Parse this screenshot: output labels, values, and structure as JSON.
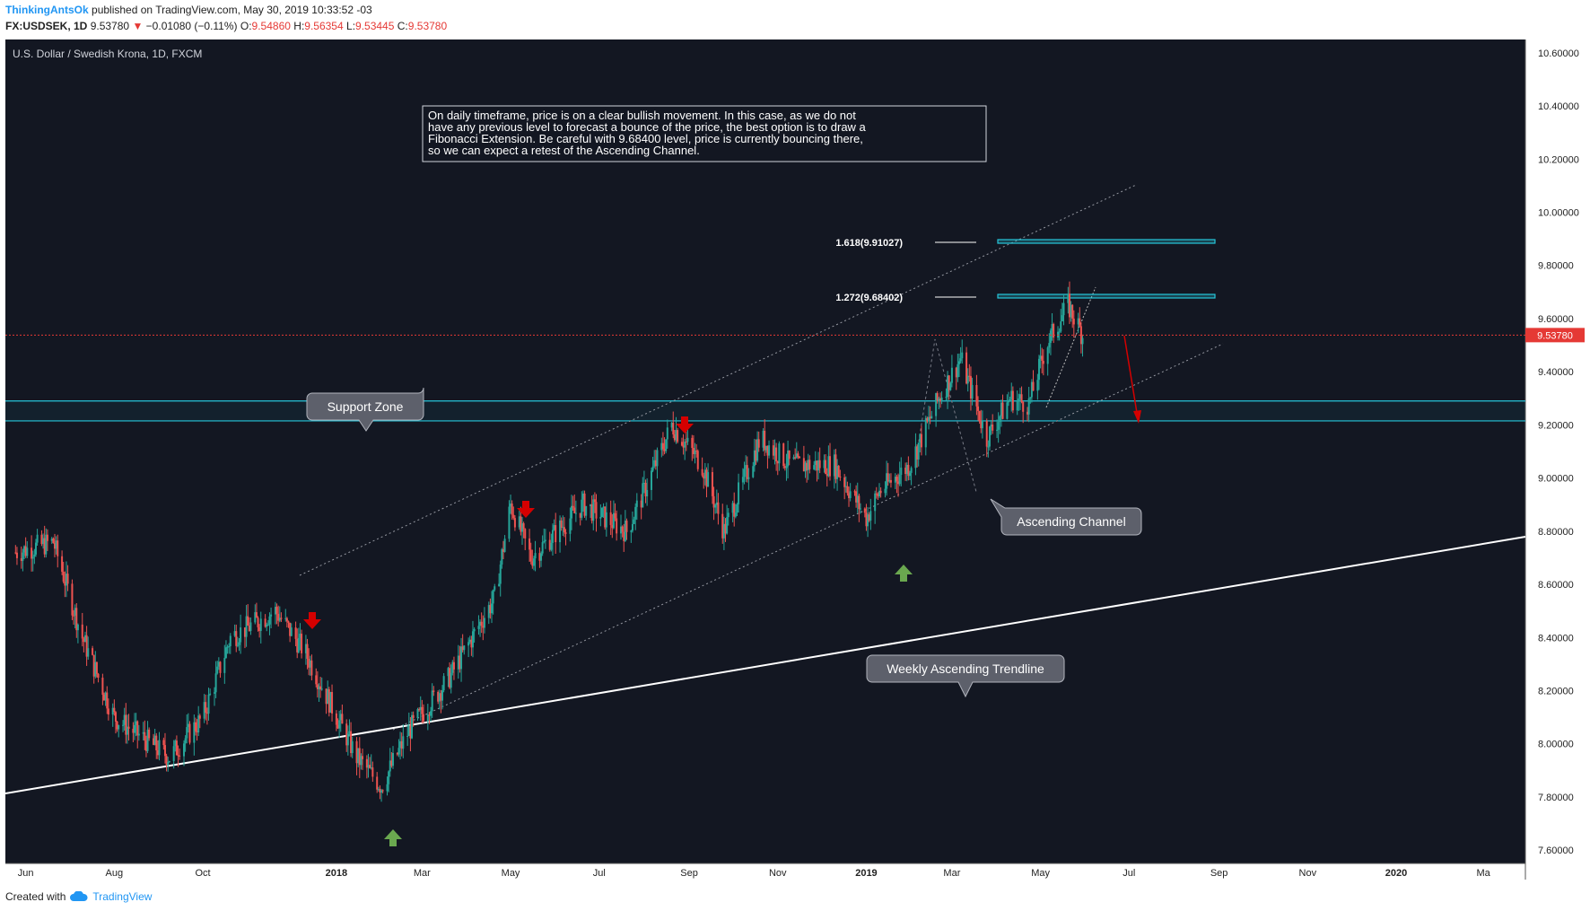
{
  "header": {
    "author": "ThinkingAntsOk",
    "published": "published on TradingView.com, May 30, 2019 10:33:52 -03",
    "symbol": "FX:USDSEK, 1D",
    "last": "9.53780",
    "change": "−0.01080 (−0.11%)",
    "open_label": "O:",
    "open": "9.54860",
    "high_label": "H:",
    "high": "9.56354",
    "low_label": "L:",
    "low": "9.53445",
    "close_label": "C:",
    "close": "9.53780"
  },
  "footer": {
    "created_with": "Created with",
    "brand": "TradingView"
  },
  "colors": {
    "background": "#131722",
    "up": "#26a69a",
    "down": "#ef5350",
    "zone": "#26c6da",
    "price_tag": "#e53935",
    "arrow_red": "#d50000",
    "arrow_green": "#6aa84f"
  },
  "chart_data": {
    "type": "candlestick",
    "title": "U.S. Dollar / Swedish Krona, 1D, FXCM",
    "ylim": [
      7.55,
      10.65
    ],
    "y_ticks": [
      "10.60000",
      "10.40000",
      "10.20000",
      "10.00000",
      "9.80000",
      "9.60000",
      "9.40000",
      "9.20000",
      "9.00000",
      "8.80000",
      "8.60000",
      "8.40000",
      "8.20000",
      "8.00000",
      "7.80000",
      "7.60000"
    ],
    "x_ticks": [
      "Jun",
      "Aug",
      "Oct",
      "2018",
      "Mar",
      "May",
      "Jul",
      "Sep",
      "Nov",
      "2019",
      "Mar",
      "May",
      "Jul",
      "Sep",
      "Nov",
      "2020",
      "Ma"
    ],
    "last_price_label": "9.53780",
    "last_price": 9.5378,
    "price_path": [
      [
        "2017-05-25",
        8.72
      ],
      [
        "2017-06-20",
        8.76
      ],
      [
        "2017-07-10",
        8.4
      ],
      [
        "2017-08-01",
        8.1
      ],
      [
        "2017-09-08",
        7.95
      ],
      [
        "2017-10-01",
        8.1
      ],
      [
        "2017-10-20",
        8.4
      ],
      [
        "2017-11-20",
        8.5
      ],
      [
        "2017-12-10",
        8.35
      ],
      [
        "2018-01-15",
        7.95
      ],
      [
        "2018-02-01",
        7.84
      ],
      [
        "2018-02-20",
        8.05
      ],
      [
        "2018-03-20",
        8.25
      ],
      [
        "2018-04-20",
        8.55
      ],
      [
        "2018-05-01",
        8.9
      ],
      [
        "2018-05-15",
        8.7
      ],
      [
        "2018-06-20",
        8.9
      ],
      [
        "2018-07-20",
        8.8
      ],
      [
        "2018-08-01",
        8.95
      ],
      [
        "2018-08-20",
        9.2
      ],
      [
        "2018-09-10",
        9.05
      ],
      [
        "2018-09-25",
        8.8
      ],
      [
        "2018-10-20",
        9.15
      ],
      [
        "2018-11-10",
        9.05
      ],
      [
        "2018-12-10",
        9.05
      ],
      [
        "2019-01-01",
        8.85
      ],
      [
        "2019-01-10",
        8.95
      ],
      [
        "2019-01-31",
        9.05
      ],
      [
        "2019-02-20",
        9.3
      ],
      [
        "2019-03-07",
        9.45
      ],
      [
        "2019-03-25",
        9.15
      ],
      [
        "2019-04-10",
        9.3
      ],
      [
        "2019-04-23",
        9.28
      ],
      [
        "2019-05-05",
        9.5
      ],
      [
        "2019-05-20",
        9.65
      ],
      [
        "2019-05-30",
        9.5378
      ]
    ],
    "support_zone": [
      9.215,
      9.29
    ],
    "fibonacci_levels": [
      {
        "label": "1.618(9.91027)",
        "value": 9.91027
      },
      {
        "label": "1.272(9.68402)",
        "value": 9.68402
      }
    ],
    "callouts": [
      {
        "text": "Support Zone"
      },
      {
        "text": "Ascending Channel"
      },
      {
        "text": "Weekly Ascending Trendline"
      }
    ],
    "annotation": "On daily timeframe, price is on a clear bullish movement. In this case, as we do not have any previous level to forecast a bounce of the price, the best option is to draw a Fibonacci Extension. Be careful with 9.68400 level, price is currently bouncing there, so we can expect a retest of the Ascending Channel.",
    "legend": "none",
    "grid": false
  }
}
